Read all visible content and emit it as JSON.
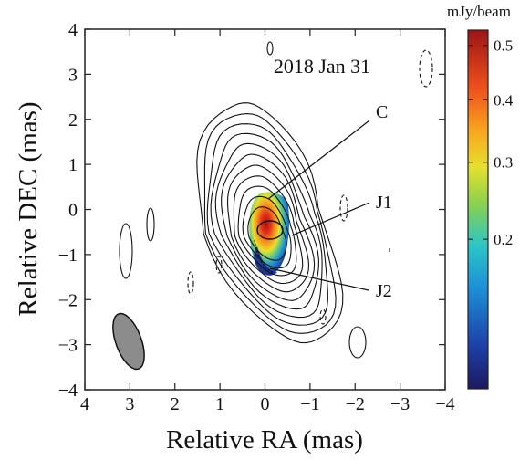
{
  "chart_data": {
    "type": "heatmap",
    "epoch_label": "2018 Jan 31",
    "xlabel": "Relative RA (mas)",
    "ylabel": "Relative DEC (mas)",
    "xlim": [
      4,
      -4
    ],
    "ylim": [
      -4,
      4
    ],
    "x_ticks": [
      4,
      3,
      2,
      1,
      0,
      -1,
      -2,
      -3,
      -4
    ],
    "x_tick_labels": [
      "4",
      "3",
      "2",
      "1",
      "0",
      "−1",
      "−2",
      "−3",
      "−4"
    ],
    "y_ticks": [
      4,
      3,
      2,
      1,
      0,
      -1,
      -2,
      -3,
      -4
    ],
    "y_tick_labels": [
      "4",
      "3",
      "2",
      "1",
      "0",
      "−1",
      "−2",
      "−3",
      "−4"
    ],
    "grid": false,
    "colorbar": {
      "unit": "mJy/beam",
      "ticks": [
        0.5,
        0.4,
        0.3,
        0.2
      ],
      "tick_labels": [
        "0.5",
        "0.4",
        "0.3",
        "0.2"
      ],
      "range": [
        0.1,
        0.53
      ]
    },
    "components": [
      {
        "name": "C",
        "x": 0.2,
        "y": -0.3
      },
      {
        "name": "J1",
        "x": -0.35,
        "y": -0.6
      },
      {
        "name": "J2",
        "x": 0.0,
        "y": -1.3
      }
    ],
    "beam": {
      "x": 3.05,
      "y": -2.95,
      "major_mas": 1.2,
      "minor_mas": 0.6,
      "pa_deg": 160
    },
    "contour_levels": 11
  }
}
